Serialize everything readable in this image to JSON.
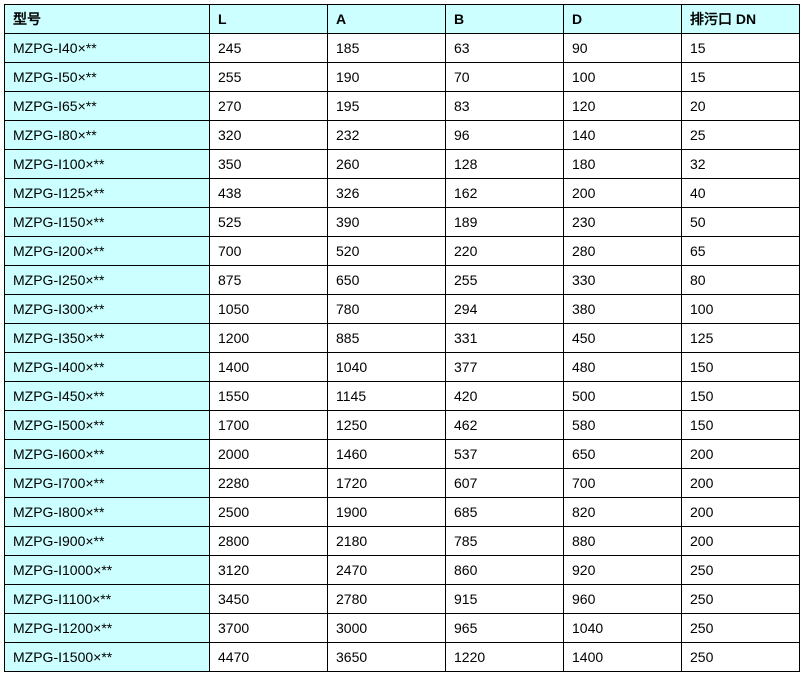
{
  "table": {
    "header_bg": "#ccffff",
    "model_col_bg": "#ccffff",
    "data_bg": "#ffffff",
    "border_color": "#000000",
    "font_size": 14,
    "columns": [
      "型号",
      "L",
      "A",
      "B",
      "D",
      "排污口 DN"
    ],
    "rows": [
      [
        "MZPG-I40×**",
        "245",
        "185",
        "63",
        "90",
        "15"
      ],
      [
        "MZPG-I50×**",
        "255",
        "190",
        "70",
        "100",
        "15"
      ],
      [
        "MZPG-I65×**",
        "270",
        "195",
        "83",
        "120",
        "20"
      ],
      [
        "MZPG-I80×**",
        "320",
        "232",
        "96",
        "140",
        "25"
      ],
      [
        "MZPG-I100×**",
        "350",
        "260",
        "128",
        "180",
        "32"
      ],
      [
        "MZPG-I125×**",
        "438",
        "326",
        "162",
        "200",
        "40"
      ],
      [
        "MZPG-I150×**",
        "525",
        "390",
        "189",
        "230",
        "50"
      ],
      [
        "MZPG-I200×**",
        "700",
        "520",
        "220",
        "280",
        "65"
      ],
      [
        "MZPG-I250×**",
        "875",
        "650",
        "255",
        "330",
        "80"
      ],
      [
        "MZPG-I300×**",
        "1050",
        "780",
        "294",
        "380",
        "100"
      ],
      [
        "MZPG-I350×**",
        "1200",
        "885",
        "331",
        "450",
        "125"
      ],
      [
        "MZPG-I400×**",
        "1400",
        "1040",
        "377",
        "480",
        "150"
      ],
      [
        "MZPG-I450×**",
        "1550",
        "1145",
        "420",
        "500",
        "150"
      ],
      [
        "MZPG-I500×**",
        "1700",
        "1250",
        "462",
        "580",
        "150"
      ],
      [
        "MZPG-I600×**",
        "2000",
        "1460",
        "537",
        "650",
        "200"
      ],
      [
        "MZPG-I700×**",
        "2280",
        "1720",
        "607",
        "700",
        "200"
      ],
      [
        "MZPG-I800×**",
        "2500",
        "1900",
        "685",
        "820",
        "200"
      ],
      [
        "MZPG-I900×**",
        "2800",
        "2180",
        "785",
        "880",
        "200"
      ],
      [
        "MZPG-I1000×**",
        "3120",
        "2470",
        "860",
        "920",
        "250"
      ],
      [
        "MZPG-I1100×**",
        "3450",
        "2780",
        "915",
        "960",
        "250"
      ],
      [
        "MZPG-I1200×**",
        "3700",
        "3000",
        "965",
        "1040",
        "250"
      ],
      [
        "MZPG-I1500×**",
        "4470",
        "3650",
        "1220",
        "1400",
        "250"
      ]
    ]
  }
}
